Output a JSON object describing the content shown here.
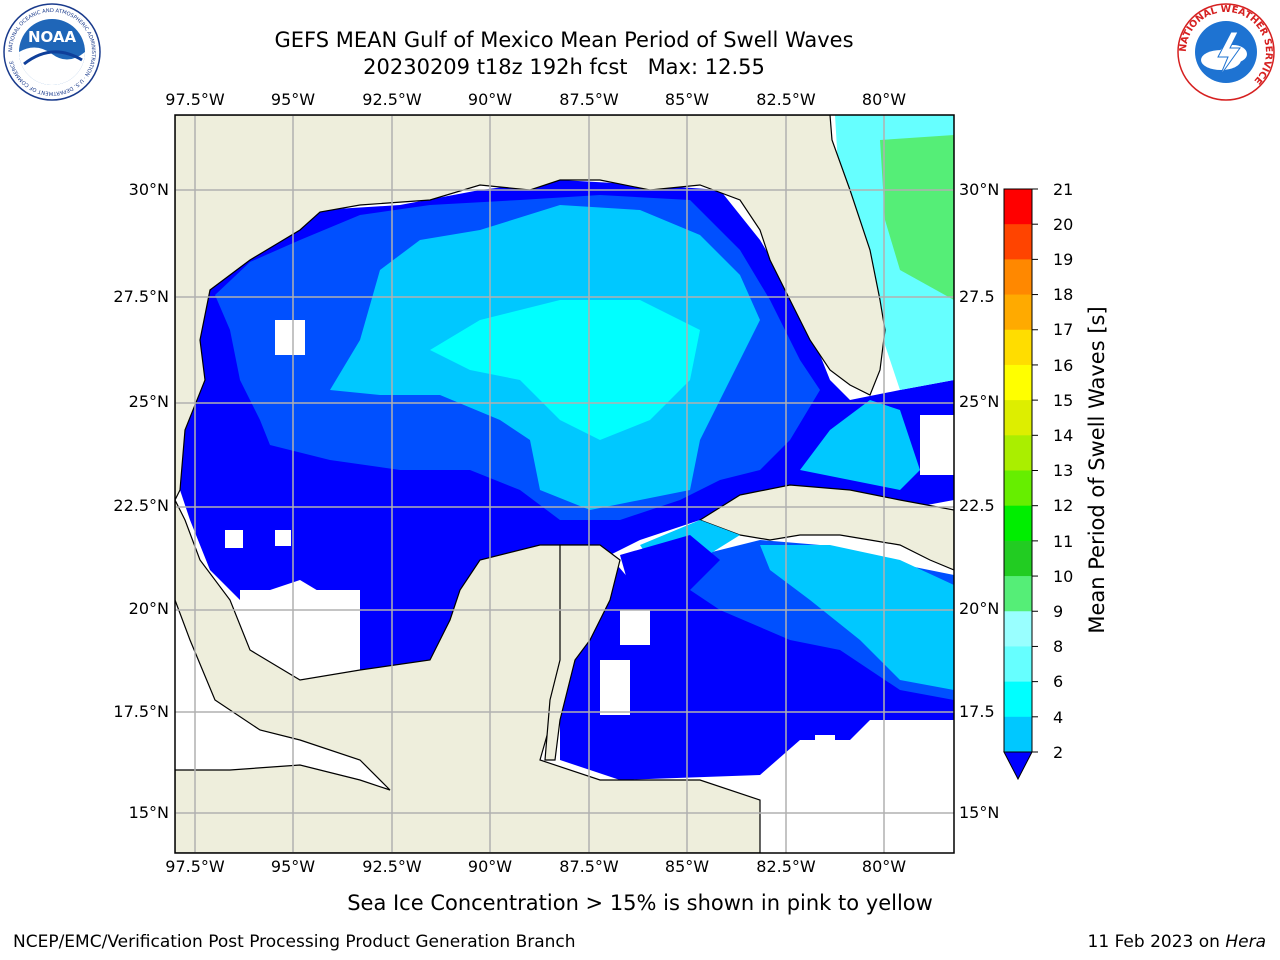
{
  "header": {
    "title_line1": "GEFS MEAN Gulf of Mexico Mean Period of Swell Waves",
    "title_line2": "20230209 t18z 192h fcst   Max: 12.55"
  },
  "logos": {
    "noaa": {
      "icon": "noaa-logo-icon",
      "text": "NOAA",
      "ring_text": "NATIONAL OCEANIC AND ATMOSPHERIC ADMINISTRATION · U.S. DEPARTMENT OF COMMERCE"
    },
    "nws": {
      "icon": "nws-logo-icon",
      "ring_text": "NATIONAL WEATHER SERVICE"
    }
  },
  "map": {
    "lon_labels": [
      "97.5°W",
      "95°W",
      "92.5°W",
      "90°W",
      "87.5°W",
      "85°W",
      "82.5°W",
      "80°W"
    ],
    "lat_labels_left": [
      "30°N",
      "27.5°N",
      "25°N",
      "22.5°N",
      "20°N",
      "17.5°N",
      "15°N"
    ],
    "lat_labels_right": [
      "30°N",
      "27.5",
      "25°N",
      "22.5",
      "20°N",
      "17.5",
      "15°N"
    ],
    "lon_range": [
      -98,
      -78.3
    ],
    "lat_range": [
      14,
      31.8
    ],
    "colors": {
      "land": "#eeeedc",
      "grid": "#b0b0b0",
      "missing": "#ffffff"
    }
  },
  "colorbar": {
    "label": "Mean Period of Swell Waves [s]",
    "ticks": [
      "21",
      "20",
      "19",
      "18",
      "17",
      "16",
      "15",
      "14",
      "13",
      "12",
      "11",
      "10",
      "9",
      "8",
      "6",
      "4",
      "2"
    ],
    "levels": [
      2,
      4,
      6,
      8,
      9,
      10,
      11,
      12,
      13,
      14,
      15,
      16,
      17,
      18,
      19,
      20,
      21
    ],
    "colors": [
      "#0050ff",
      "#00c8ff",
      "#00ffff",
      "#66ffff",
      "#99ffff",
      "#55ee77",
      "#22cc22",
      "#00ee00",
      "#66ee00",
      "#aaee00",
      "#ddee00",
      "#ffff00",
      "#ffdd00",
      "#ffaa00",
      "#ff8800",
      "#ff4400",
      "#ff0000"
    ],
    "under_color": "#0000ff"
  },
  "footer": {
    "note": "Sea Ice Concentration > 15% is shown in pink to yellow",
    "left": "NCEP/EMC/Verification Post Processing Product Generation Branch",
    "right_prefix": "11 Feb 2023 on ",
    "right_machine": "Hera"
  }
}
